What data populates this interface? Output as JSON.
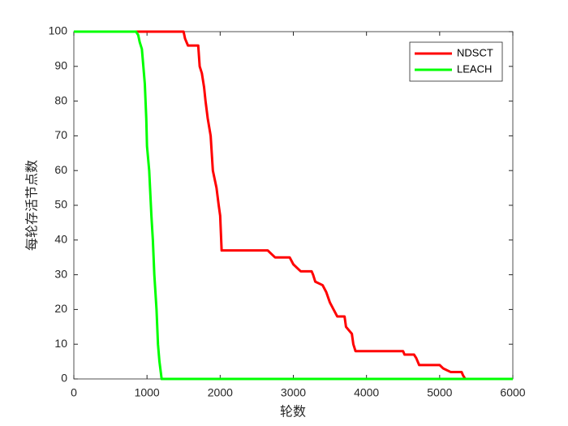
{
  "chart_data": {
    "type": "line",
    "xlabel": "轮数",
    "ylabel": "每轮存活节点数",
    "xlim": [
      0,
      6000
    ],
    "ylim": [
      0,
      100
    ],
    "xticks": [
      0,
      1000,
      2000,
      3000,
      4000,
      5000,
      6000
    ],
    "yticks": [
      0,
      10,
      20,
      30,
      40,
      50,
      60,
      70,
      80,
      90,
      100
    ],
    "grid": false,
    "legend": "top-right",
    "series": [
      {
        "name": "NDSCT",
        "color": "#ff0000",
        "x": [
          0,
          1500,
          1520,
          1560,
          1700,
          1720,
          1750,
          1780,
          1800,
          1830,
          1870,
          1900,
          1950,
          1980,
          2000,
          2020,
          2650,
          2700,
          2750,
          2950,
          3000,
          3050,
          3100,
          3250,
          3270,
          3300,
          3400,
          3450,
          3500,
          3550,
          3600,
          3700,
          3720,
          3800,
          3820,
          3850,
          4500,
          4520,
          4650,
          4680,
          4720,
          5000,
          5050,
          5150,
          5300,
          5320,
          5350
        ],
        "values": [
          100,
          100,
          98,
          96,
          96,
          90,
          88,
          84,
          80,
          75,
          70,
          60,
          55,
          50,
          47,
          37,
          37,
          36,
          35,
          35,
          33,
          32,
          31,
          31,
          30,
          28,
          27,
          25,
          22,
          20,
          18,
          18,
          15,
          13,
          10,
          8,
          8,
          7,
          7,
          6,
          4,
          4,
          3,
          2,
          2,
          1,
          0
        ]
      },
      {
        "name": "LEACH",
        "color": "#00ff00",
        "x": [
          0,
          850,
          880,
          900,
          930,
          950,
          970,
          990,
          1000,
          1030,
          1060,
          1080,
          1100,
          1130,
          1150,
          1170,
          1200,
          6000
        ],
        "values": [
          100,
          100,
          99,
          97,
          95,
          90,
          85,
          75,
          67,
          60,
          47,
          40,
          30,
          20,
          10,
          5,
          0,
          0
        ]
      }
    ]
  }
}
